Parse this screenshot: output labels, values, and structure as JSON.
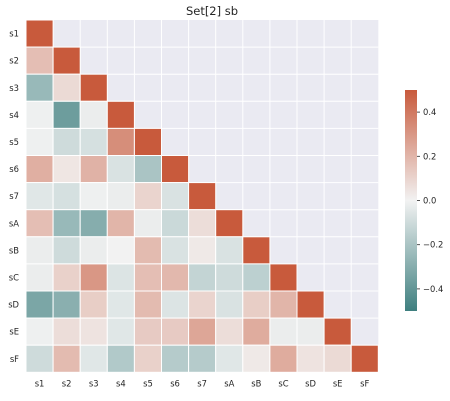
{
  "chart_data": {
    "type": "heatmap",
    "title": "Set[2]  sb",
    "labels": [
      "s1",
      "s2",
      "s3",
      "s4",
      "s5",
      "s6",
      "s7",
      "sA",
      "sB",
      "sC",
      "sD",
      "sE",
      "sF"
    ],
    "matrix": [
      [
        0.5
      ],
      [
        0.17,
        0.5
      ],
      [
        -0.25,
        0.08,
        0.5
      ],
      [
        -0.01,
        -0.37,
        -0.02,
        0.5
      ],
      [
        -0.01,
        -0.1,
        -0.08,
        0.33,
        0.5
      ],
      [
        0.22,
        0.04,
        0.21,
        -0.07,
        -0.2,
        0.5
      ],
      [
        -0.05,
        -0.08,
        -0.01,
        -0.02,
        0.1,
        -0.07,
        0.5
      ],
      [
        0.17,
        -0.25,
        -0.3,
        0.2,
        -0.02,
        -0.11,
        0.07,
        0.5
      ],
      [
        -0.02,
        -0.1,
        -0.02,
        0.0,
        0.18,
        -0.07,
        0.03,
        -0.07,
        0.5
      ],
      [
        -0.02,
        0.11,
        0.3,
        -0.06,
        0.17,
        0.19,
        -0.13,
        -0.1,
        -0.15,
        0.5
      ],
      [
        -0.33,
        -0.29,
        0.12,
        -0.05,
        0.18,
        -0.06,
        0.1,
        -0.07,
        0.12,
        0.2,
        0.5
      ],
      [
        -0.01,
        0.07,
        0.05,
        -0.05,
        0.13,
        0.13,
        0.25,
        0.07,
        0.23,
        -0.02,
        -0.02,
        0.5
      ],
      [
        -0.1,
        0.18,
        -0.05,
        -0.18,
        0.11,
        -0.17,
        -0.17,
        -0.05,
        0.03,
        0.23,
        0.05,
        0.08,
        0.5
      ]
    ],
    "vmin": -0.5,
    "vmax": 0.5,
    "colormap": {
      "low": "#3e7f7f",
      "mid": "#f2f2f2",
      "high": "#c85a3c"
    },
    "background": "#eaeaf2",
    "mask": "upper-triangle",
    "colorbar": {
      "ticks": [
        0.4,
        0.2,
        0.0,
        -0.2,
        -0.4
      ],
      "tick_labels": [
        "0.4",
        "0.2",
        "0.0",
        "−0.2",
        "−0.4"
      ]
    }
  }
}
